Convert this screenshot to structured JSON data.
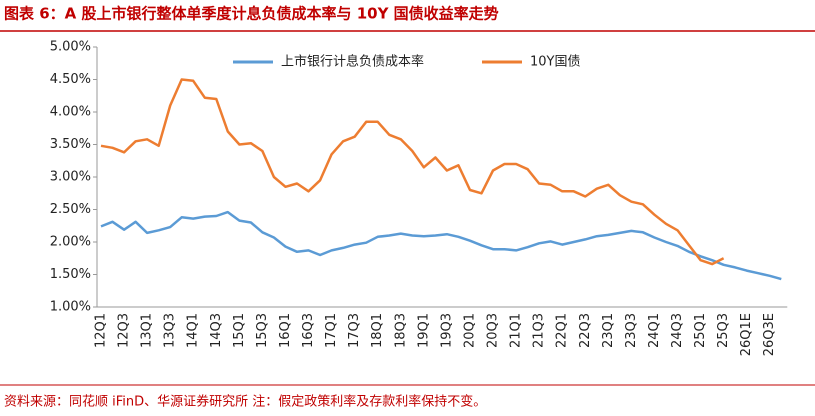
{
  "chart_data": {
    "type": "line",
    "title": "图表 6：A 股上市银行整体单季度计息负债成本率与 10Y 国债收益率走势",
    "source": "资料来源：同花顺 iFinD、华源证券研究所 注：假定政策利率及存款利率保持不变。",
    "categories": [
      "12Q1",
      null,
      "12Q3",
      null,
      "13Q1",
      null,
      "13Q3",
      null,
      "14Q1",
      null,
      "14Q3",
      null,
      "15Q1",
      null,
      "15Q3",
      null,
      "16Q1",
      null,
      "16Q3",
      null,
      "17Q1",
      null,
      "17Q3",
      null,
      "18Q1",
      null,
      "18Q3",
      null,
      "19Q1",
      null,
      "19Q3",
      null,
      "20Q1",
      null,
      "20Q3",
      null,
      "21Q1",
      null,
      "21Q3",
      null,
      "22Q1",
      null,
      "22Q3",
      null,
      "23Q1",
      null,
      "23Q3",
      null,
      "24Q1",
      null,
      "24Q3",
      null,
      "25Q1",
      null,
      "25Q3",
      null,
      "26Q1E",
      null,
      "26Q3E",
      null
    ],
    "series": [
      {
        "name": "上市银行计息负债成本率",
        "color": "#5b9bd5",
        "values": [
          2.24,
          2.31,
          2.19,
          2.31,
          2.14,
          2.18,
          2.23,
          2.38,
          2.36,
          2.39,
          2.4,
          2.46,
          2.33,
          2.3,
          2.15,
          2.07,
          1.93,
          1.85,
          1.87,
          1.8,
          1.87,
          1.91,
          1.96,
          1.99,
          2.08,
          2.1,
          2.13,
          2.1,
          2.09,
          2.1,
          2.12,
          2.08,
          2.02,
          1.95,
          1.89,
          1.89,
          1.87,
          1.92,
          1.98,
          2.01,
          1.96,
          2.0,
          2.04,
          2.09,
          2.11,
          2.14,
          2.17,
          2.15,
          2.07,
          2.0,
          1.94,
          1.85,
          1.78,
          1.72,
          1.65,
          1.61,
          1.56,
          1.52,
          1.48,
          1.43
        ]
      },
      {
        "name": "10Y国债",
        "color": "#ed7d31",
        "values": [
          3.48,
          3.45,
          3.38,
          3.55,
          3.58,
          3.48,
          4.1,
          4.5,
          4.48,
          4.22,
          4.2,
          3.7,
          3.5,
          3.52,
          3.4,
          3.0,
          2.85,
          2.9,
          2.78,
          2.95,
          3.35,
          3.55,
          3.62,
          3.85,
          3.85,
          3.65,
          3.58,
          3.4,
          3.15,
          3.3,
          3.1,
          3.18,
          2.8,
          2.75,
          3.1,
          3.2,
          3.2,
          3.12,
          2.9,
          2.88,
          2.78,
          2.78,
          2.7,
          2.82,
          2.88,
          2.72,
          2.62,
          2.58,
          2.42,
          2.28,
          2.18,
          1.95,
          1.72,
          1.66,
          1.75,
          null,
          null,
          null,
          null,
          null
        ]
      }
    ],
    "ylim": [
      1,
      5
    ],
    "yticks": [
      {
        "value": 1,
        "label": "1.00%"
      },
      {
        "value": 1.5,
        "label": "1.50%"
      },
      {
        "value": 2,
        "label": "2.00%"
      },
      {
        "value": 2.5,
        "label": "2.50%"
      },
      {
        "value": 3,
        "label": "3.00%"
      },
      {
        "value": 3.5,
        "label": "3.50%"
      },
      {
        "value": 4,
        "label": "4.00%"
      },
      {
        "value": 4.5,
        "label": "4.50%"
      },
      {
        "value": 5,
        "label": "5.00%"
      }
    ]
  }
}
